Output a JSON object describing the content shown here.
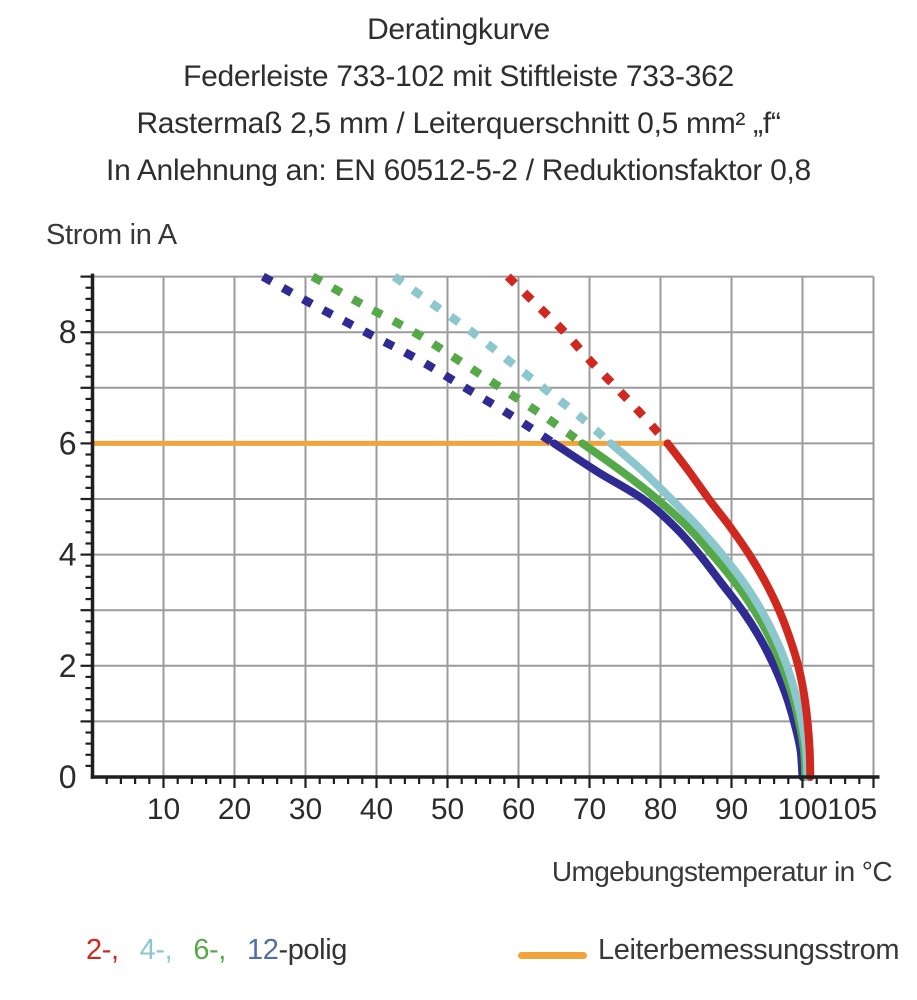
{
  "title": {
    "line1": "Deratingkurve",
    "line2": "Federleiste 733-102 mit Stiftleiste 733-362",
    "line3": "Rastermaß 2,5 mm / Leiterquerschnitt 0,5 mm² „f“",
    "line4": "In Anlehnung an: EN 60512-5-2 / Reduktionsfaktor 0,8"
  },
  "legend": {
    "series_labels": [
      {
        "text": "2-,",
        "color": "#cf291f",
        "joined": false
      },
      {
        "text": "4-,",
        "color": "#8bc7cd",
        "joined": false
      },
      {
        "text": "6-,",
        "color": "#56a948",
        "joined": false
      },
      {
        "text": "12",
        "color": "#4e6fae",
        "joined": true
      },
      {
        "text": "-polig",
        "color": "#333333",
        "joined": true
      }
    ],
    "rated_label": "Leiterbemessungsstrom",
    "rated_color": "#f2a43c"
  },
  "chart_data": {
    "type": "line",
    "title": "Deratingkurve",
    "xlabel": "Umgebungstemperatur in °C",
    "ylabel": "Strom in A",
    "xlim": [
      0,
      110
    ],
    "ylim": [
      0,
      9
    ],
    "x_tick_labels": [
      10,
      20,
      30,
      40,
      50,
      60,
      70,
      80,
      90,
      100,
      105
    ],
    "x_grid_step": 10,
    "x_minor_tick_step": 2,
    "y_tick_labels": [
      0,
      2,
      4,
      6,
      8
    ],
    "y_grid_step": 1,
    "y_minor_tick_step": 0.2,
    "grid": true,
    "grid_color": "#9b9b9b",
    "axis_color": "#1f1f1f",
    "tick_label_color": "#2b2b2b",
    "rated_current": {
      "value": 6,
      "x_start": 0,
      "x_end": 81,
      "color": "#f2a43c",
      "label": "Leiterbemessungsstrom"
    },
    "dashed_above_A": 6,
    "series": [
      {
        "name": "2-polig",
        "color": "#cf291f",
        "dashed_points": [
          [
            58.5,
            9
          ],
          [
            62.5,
            8.5
          ],
          [
            66.5,
            8
          ],
          [
            70,
            7.5
          ],
          [
            73.8,
            7
          ],
          [
            77.5,
            6.5
          ],
          [
            81,
            6
          ]
        ],
        "solid_points": [
          [
            81,
            6
          ],
          [
            84,
            5.5
          ],
          [
            86.8,
            5
          ],
          [
            89.8,
            4.5
          ],
          [
            92.5,
            4
          ],
          [
            94.8,
            3.5
          ],
          [
            96.7,
            3
          ],
          [
            98.2,
            2.5
          ],
          [
            99.4,
            2
          ],
          [
            100.2,
            1.5
          ],
          [
            100.7,
            1
          ],
          [
            101,
            0.5
          ],
          [
            101.1,
            0
          ]
        ]
      },
      {
        "name": "4-polig",
        "color": "#8bc7cd",
        "dashed_points": [
          [
            42.5,
            9
          ],
          [
            48,
            8.5
          ],
          [
            53.5,
            8
          ],
          [
            58.5,
            7.5
          ],
          [
            63.5,
            7
          ],
          [
            68.5,
            6.5
          ],
          [
            73,
            6
          ]
        ],
        "solid_points": [
          [
            73,
            6
          ],
          [
            77.5,
            5.5
          ],
          [
            81.5,
            5
          ],
          [
            85.3,
            4.5
          ],
          [
            88.7,
            4
          ],
          [
            91.7,
            3.5
          ],
          [
            94.2,
            3
          ],
          [
            96.2,
            2.5
          ],
          [
            97.8,
            2
          ],
          [
            99,
            1.5
          ],
          [
            99.9,
            1
          ],
          [
            100.5,
            0.5
          ],
          [
            100.7,
            0
          ]
        ]
      },
      {
        "name": "6-polig",
        "color": "#56a948",
        "dashed_points": [
          [
            31,
            9
          ],
          [
            38,
            8.5
          ],
          [
            45.3,
            8
          ],
          [
            51.5,
            7.5
          ],
          [
            57.5,
            7
          ],
          [
            63.5,
            6.5
          ],
          [
            69,
            6
          ]
        ],
        "solid_points": [
          [
            69,
            6
          ],
          [
            74.5,
            5.5
          ],
          [
            79.5,
            5
          ],
          [
            83.8,
            4.5
          ],
          [
            87.3,
            4
          ],
          [
            90.5,
            3.5
          ],
          [
            93.2,
            3
          ],
          [
            95.4,
            2.5
          ],
          [
            97.1,
            2
          ],
          [
            98.5,
            1.5
          ],
          [
            99.5,
            1
          ],
          [
            100.2,
            0.5
          ],
          [
            100.4,
            0
          ]
        ]
      },
      {
        "name": "12-polig",
        "color": "#2f2b92",
        "dashed_points": [
          [
            24,
            9
          ],
          [
            31,
            8.5
          ],
          [
            38.5,
            8
          ],
          [
            46,
            7.5
          ],
          [
            52.5,
            7
          ],
          [
            59,
            6.5
          ],
          [
            65,
            6
          ]
        ],
        "solid_points": [
          [
            65,
            6
          ],
          [
            71,
            5.5
          ],
          [
            77.5,
            5
          ],
          [
            82,
            4.5
          ],
          [
            85.5,
            4
          ],
          [
            88.5,
            3.5
          ],
          [
            91.5,
            3
          ],
          [
            94,
            2.5
          ],
          [
            96,
            2
          ],
          [
            97.6,
            1.5
          ],
          [
            98.8,
            1
          ],
          [
            99.7,
            0.5
          ],
          [
            100,
            0
          ]
        ]
      }
    ]
  }
}
